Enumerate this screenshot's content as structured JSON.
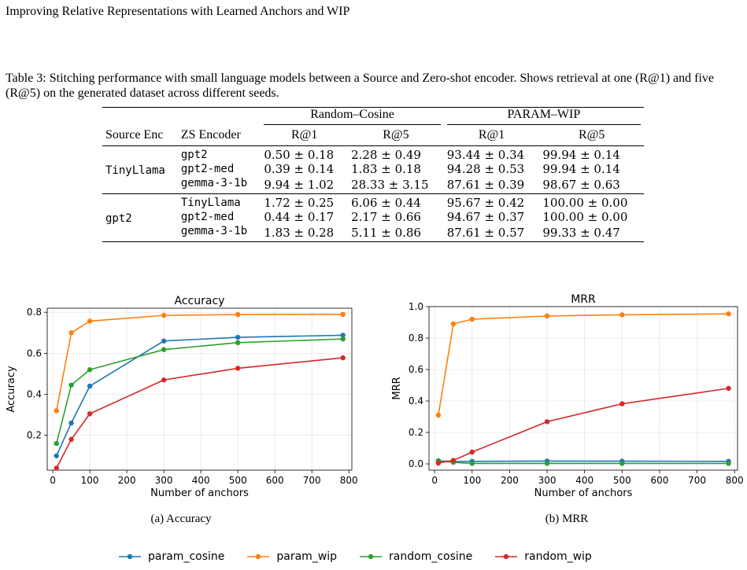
{
  "header": {
    "running_title": "Improving Relative Representations with Learned Anchors and WIP"
  },
  "table": {
    "caption": "Table 3: Stitching performance with small language models between a Source and Zero-shot encoder. Shows retrieval at one (R@1) and five (R@5) on the generated dataset across different seeds.",
    "group_random": "Random–Cosine",
    "group_param": "PARAM–WIP",
    "col_source": "Source Enc",
    "col_zs": "ZS Encoder",
    "col_r1": "R@1",
    "col_r5": "R@5",
    "rows": [
      {
        "source": "TinyLlama",
        "zs": "gpt2",
        "rc_r1": "0.50 ± 0.18",
        "rc_r5": "2.28 ± 0.49",
        "pw_r1": "93.44 ± 0.34",
        "pw_r5": "99.94 ± 0.14"
      },
      {
        "source": "",
        "zs": "gpt2-med",
        "rc_r1": "0.39 ± 0.14",
        "rc_r5": "1.83 ± 0.18",
        "pw_r1": "94.28 ± 0.53",
        "pw_r5": "99.94 ± 0.14"
      },
      {
        "source": "",
        "zs": "gemma-3-1b",
        "rc_r1": "9.94 ± 1.02",
        "rc_r5": "28.33 ± 3.15",
        "pw_r1": "87.61 ± 0.39",
        "pw_r5": "98.67 ± 0.63"
      },
      {
        "source": "gpt2",
        "zs": "TinyLlama",
        "rc_r1": "1.72 ± 0.25",
        "rc_r5": "6.06 ± 0.44",
        "pw_r1": "95.67 ± 0.42",
        "pw_r5": "100.00 ± 0.00"
      },
      {
        "source": "",
        "zs": "gpt2-med",
        "rc_r1": "0.44 ± 0.17",
        "rc_r5": "2.17 ± 0.66",
        "pw_r1": "94.67 ± 0.37",
        "pw_r5": "100.00 ± 0.00"
      },
      {
        "source": "",
        "zs": "gemma-3-1b",
        "rc_r1": "1.83 ± 0.28",
        "rc_r5": "5.11 ± 0.86",
        "pw_r1": "87.61 ± 0.57",
        "pw_r5": "99.33 ± 0.47"
      }
    ]
  },
  "colors": {
    "param_cosine": "#1f77b4",
    "param_wip": "#ff7f0e",
    "random_cosine": "#2ca02c",
    "random_wip": "#d62728"
  },
  "legend": [
    "param_cosine",
    "param_wip",
    "random_cosine",
    "random_wip"
  ],
  "chart_data": [
    {
      "type": "line",
      "title": "Accuracy",
      "xlabel": "Number of anchors",
      "ylabel": "Accuracy",
      "xlim": [
        -15,
        808
      ],
      "ylim": [
        0.03,
        0.82
      ],
      "xticks": [
        0,
        100,
        200,
        300,
        400,
        500,
        600,
        700,
        800
      ],
      "yticks": [
        0.2,
        0.4,
        0.6,
        0.8
      ],
      "yticklabels": [
        "0.2",
        "0.4",
        "0.6",
        "0.8"
      ],
      "grid": true,
      "x": [
        10,
        50,
        100,
        300,
        500,
        784
      ],
      "series": [
        {
          "name": "param_cosine",
          "values": [
            0.1,
            0.26,
            0.44,
            0.66,
            0.678,
            0.688
          ]
        },
        {
          "name": "param_wip",
          "values": [
            0.32,
            0.7,
            0.757,
            0.785,
            0.789,
            0.79
          ]
        },
        {
          "name": "random_cosine",
          "values": [
            0.16,
            0.445,
            0.52,
            0.618,
            0.652,
            0.67
          ]
        },
        {
          "name": "random_wip",
          "values": [
            0.04,
            0.18,
            0.305,
            0.47,
            0.527,
            0.578
          ]
        }
      ],
      "subcaption": "(a) Accuracy"
    },
    {
      "type": "line",
      "title": "MRR",
      "xlabel": "Number of anchors",
      "ylabel": "MRR",
      "xlim": [
        -15,
        808
      ],
      "ylim": [
        -0.04,
        1.0
      ],
      "xticks": [
        0,
        100,
        200,
        300,
        400,
        500,
        600,
        700,
        800
      ],
      "yticks": [
        0.0,
        0.2,
        0.4,
        0.6,
        0.8,
        1.0
      ],
      "yticklabels": [
        "0.0",
        "0.2",
        "0.4",
        "0.6",
        "0.8",
        "1.0"
      ],
      "grid": true,
      "x": [
        10,
        50,
        100,
        300,
        500,
        784
      ],
      "series": [
        {
          "name": "param_cosine",
          "values": [
            0.02,
            0.015,
            0.016,
            0.018,
            0.017,
            0.016
          ]
        },
        {
          "name": "param_wip",
          "values": [
            0.31,
            0.89,
            0.92,
            0.94,
            0.948,
            0.954
          ]
        },
        {
          "name": "random_cosine",
          "values": [
            0.017,
            0.01,
            0.003,
            0.003,
            0.003,
            0.003
          ]
        },
        {
          "name": "random_wip",
          "values": [
            0.005,
            0.022,
            0.075,
            0.268,
            0.382,
            0.48
          ]
        }
      ],
      "subcaption": "(b) MRR"
    }
  ]
}
